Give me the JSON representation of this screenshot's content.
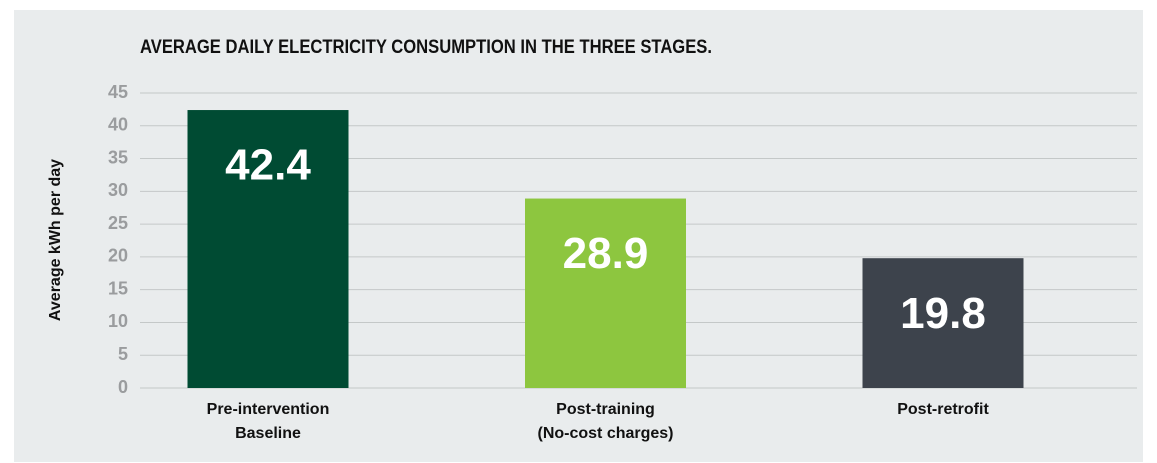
{
  "chart_data": {
    "type": "bar",
    "title": "AVERAGE DAILY ELECTRICITY CONSUMPTION IN THE THREE STAGES.",
    "y_label": "Average kWh per day",
    "categories": [
      [
        "Pre-intervention",
        "Baseline"
      ],
      [
        "Post-training",
        "(No-cost charges)"
      ],
      [
        "Post-retrofit"
      ]
    ],
    "values": [
      42.4,
      28.9,
      19.8
    ],
    "colors": [
      "#004b33",
      "#8dc63f",
      "#3d434c"
    ],
    "ylim": [
      0,
      45
    ],
    "yticks": [
      0,
      5,
      10,
      15,
      20,
      25,
      30,
      35,
      40,
      45
    ],
    "grid": true
  }
}
